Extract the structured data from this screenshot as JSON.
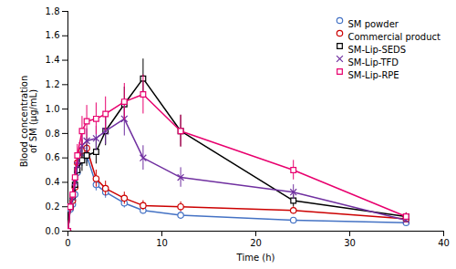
{
  "chart_data": {
    "type": "line",
    "xlabel": "Time (h)",
    "ylabel": "Blood concentration\nof SM (μg/mL)",
    "xlim": [
      0,
      40
    ],
    "ylim": [
      0,
      1.8
    ],
    "xticks": [
      0,
      10,
      20,
      30,
      40
    ],
    "yticks": [
      {
        "value": 0,
        "label": "0.0"
      },
      0.2,
      0.4,
      0.6,
      0.8,
      {
        "value": 1,
        "label": "1.0"
      },
      1.2,
      1.4,
      1.6,
      1.8
    ],
    "legend": "upper right",
    "x": [
      0,
      0.25,
      0.5,
      0.75,
      1,
      1.5,
      2,
      3,
      4,
      6,
      8,
      12,
      24,
      36
    ],
    "series": [
      {
        "name": "SM powder",
        "color": "#4472C4",
        "marker": "circle",
        "values": [
          0,
          0.18,
          0.22,
          0.3,
          0.48,
          0.6,
          0.62,
          0.38,
          0.32,
          0.23,
          0.17,
          0.13,
          0.09,
          0.07
        ],
        "yerr": [
          0,
          0.03,
          0.04,
          0.05,
          0.06,
          0.07,
          0.07,
          0.05,
          0.05,
          0.04,
          0.03,
          0.03,
          0.02,
          0.02
        ]
      },
      {
        "name": "Commercial product",
        "color": "#CC0000",
        "marker": "circle",
        "values": [
          0,
          0.2,
          0.25,
          0.36,
          0.56,
          0.66,
          0.68,
          0.43,
          0.35,
          0.27,
          0.21,
          0.2,
          0.17,
          0.1
        ],
        "yerr": [
          0,
          0.04,
          0.05,
          0.06,
          0.08,
          0.09,
          0.09,
          0.07,
          0.06,
          0.05,
          0.04,
          0.04,
          0.03,
          0.02
        ]
      },
      {
        "name": "SM-Lip-SEDS",
        "color": "#000000",
        "marker": "square",
        "values": [
          0,
          0.2,
          0.28,
          0.38,
          0.5,
          0.58,
          0.62,
          0.65,
          0.82,
          1.04,
          1.25,
          0.82,
          0.25,
          0.12
        ],
        "yerr": [
          0,
          0.04,
          0.05,
          0.06,
          0.07,
          0.09,
          0.09,
          0.1,
          0.12,
          0.14,
          0.16,
          0.13,
          0.05,
          0.03
        ]
      },
      {
        "name": "SM-Lip-TFD",
        "color": "#7030A0",
        "marker": "x",
        "values": [
          0,
          0.2,
          0.28,
          0.4,
          0.54,
          0.7,
          0.74,
          0.76,
          0.82,
          0.92,
          0.6,
          0.44,
          0.32,
          0.09
        ],
        "yerr": [
          0,
          0.04,
          0.05,
          0.06,
          0.07,
          0.09,
          0.1,
          0.1,
          0.11,
          0.14,
          0.1,
          0.08,
          0.06,
          0.02
        ]
      },
      {
        "name": "SM-Lip-RPE",
        "color": "#E8006E",
        "marker": "square",
        "values": [
          0,
          0.2,
          0.3,
          0.44,
          0.62,
          0.82,
          0.9,
          0.92,
          0.96,
          1.06,
          1.12,
          0.82,
          0.5,
          0.12
        ],
        "yerr": [
          0,
          0.04,
          0.05,
          0.07,
          0.09,
          0.12,
          0.13,
          0.13,
          0.14,
          0.15,
          0.16,
          0.13,
          0.08,
          0.03
        ]
      }
    ]
  }
}
